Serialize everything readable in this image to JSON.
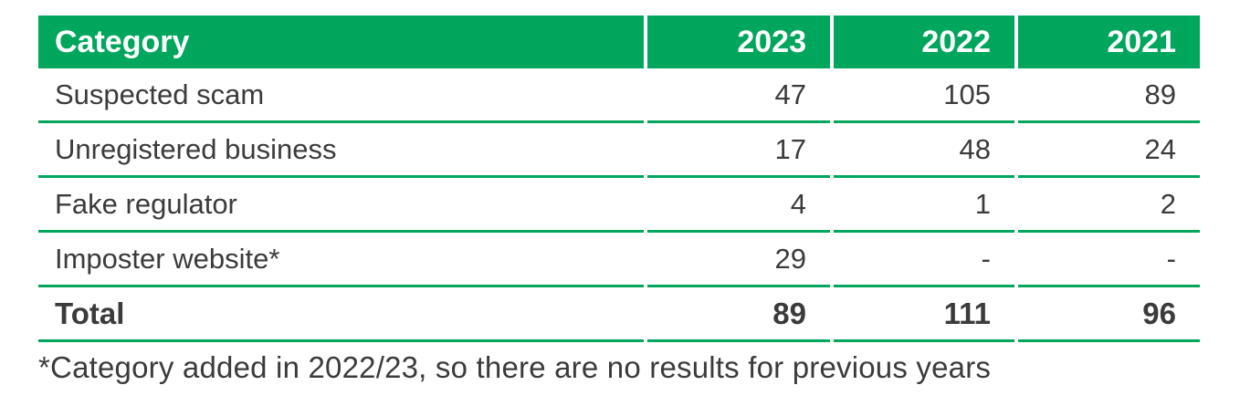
{
  "colors": {
    "green": "#00a65c",
    "text": "#3b3b3b",
    "header_text": "#ffffff"
  },
  "chart_data": {
    "type": "table",
    "columns": [
      "Category",
      "2023",
      "2022",
      "2021"
    ],
    "rows": [
      [
        "Suspected scam",
        "47",
        "105",
        "89"
      ],
      [
        "Unregistered business",
        "17",
        "48",
        "24"
      ],
      [
        "Fake regulator",
        "4",
        "1",
        "2"
      ],
      [
        "Imposter website*",
        "29",
        "-",
        "-"
      ],
      [
        "Total",
        "89",
        "111",
        "96"
      ]
    ],
    "footnote": "*Category added in 2022/23, so there are no results for previous years",
    "layout": {
      "header_background": "#00a65c",
      "row_separator": "thin green rule with gaps at column boundaries",
      "value_alignment": "right",
      "total_row_bold": true
    }
  }
}
